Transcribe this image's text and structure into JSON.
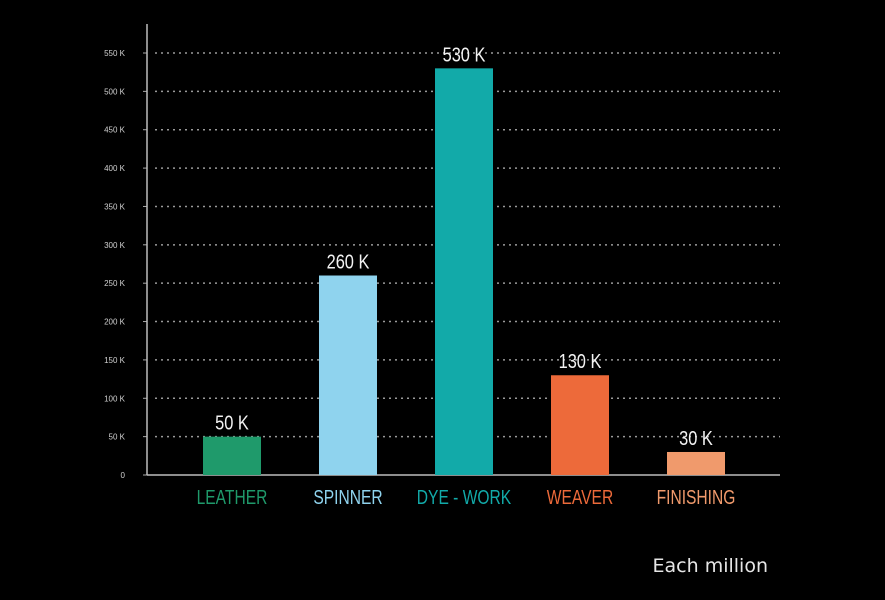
{
  "chart_data": {
    "type": "bar",
    "categories": [
      "LEATHER",
      "SPINNER",
      "DYE - WORK",
      "WEAVER",
      "FINISHING"
    ],
    "values": [
      50,
      260,
      530,
      130,
      30
    ],
    "value_labels": [
      "50 K",
      "260 K",
      "530 K",
      "130 K",
      "30 K"
    ],
    "colors": [
      "#1f9a6b",
      "#8fd3ee",
      "#12aaa9",
      "#ed6a3a",
      "#f09a6c"
    ],
    "label_colors": [
      "#1f9a6b",
      "#8fd3ee",
      "#12aaa9",
      "#ed6a3a",
      "#f09a6c"
    ],
    "y_ticks": [
      0,
      50,
      100,
      150,
      200,
      250,
      300,
      350,
      400,
      450,
      500,
      550
    ],
    "y_tick_labels": [
      "0",
      "50 K",
      "100 K",
      "150 K",
      "200 K",
      "250 K",
      "300 K",
      "350 K",
      "400 K",
      "450 K",
      "500 K",
      "550 K"
    ],
    "ylim": [
      0,
      550
    ],
    "grid": true,
    "unit_note": "Each million"
  }
}
